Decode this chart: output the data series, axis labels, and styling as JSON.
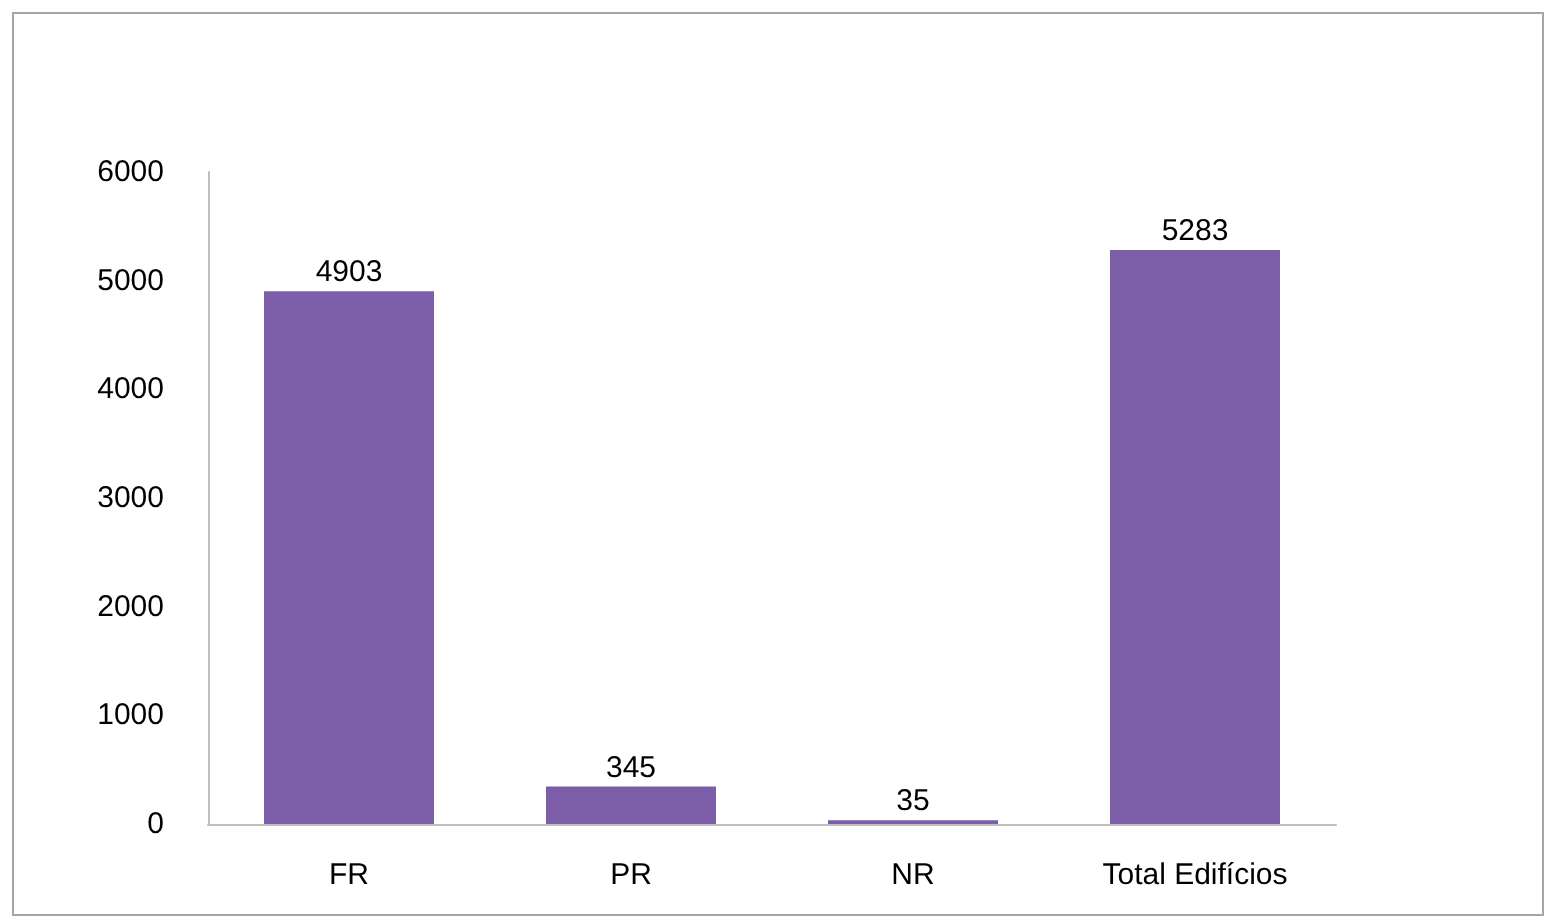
{
  "chart_data": {
    "type": "bar",
    "categories": [
      "FR",
      "PR",
      "NR",
      "Total Edifícios"
    ],
    "values": [
      4903,
      345,
      35,
      5283
    ],
    "color": "#7b5ea7",
    "ylim": [
      0,
      6000
    ],
    "yticks": [
      0,
      1000,
      2000,
      3000,
      4000,
      5000,
      6000
    ],
    "data_labels": true
  }
}
